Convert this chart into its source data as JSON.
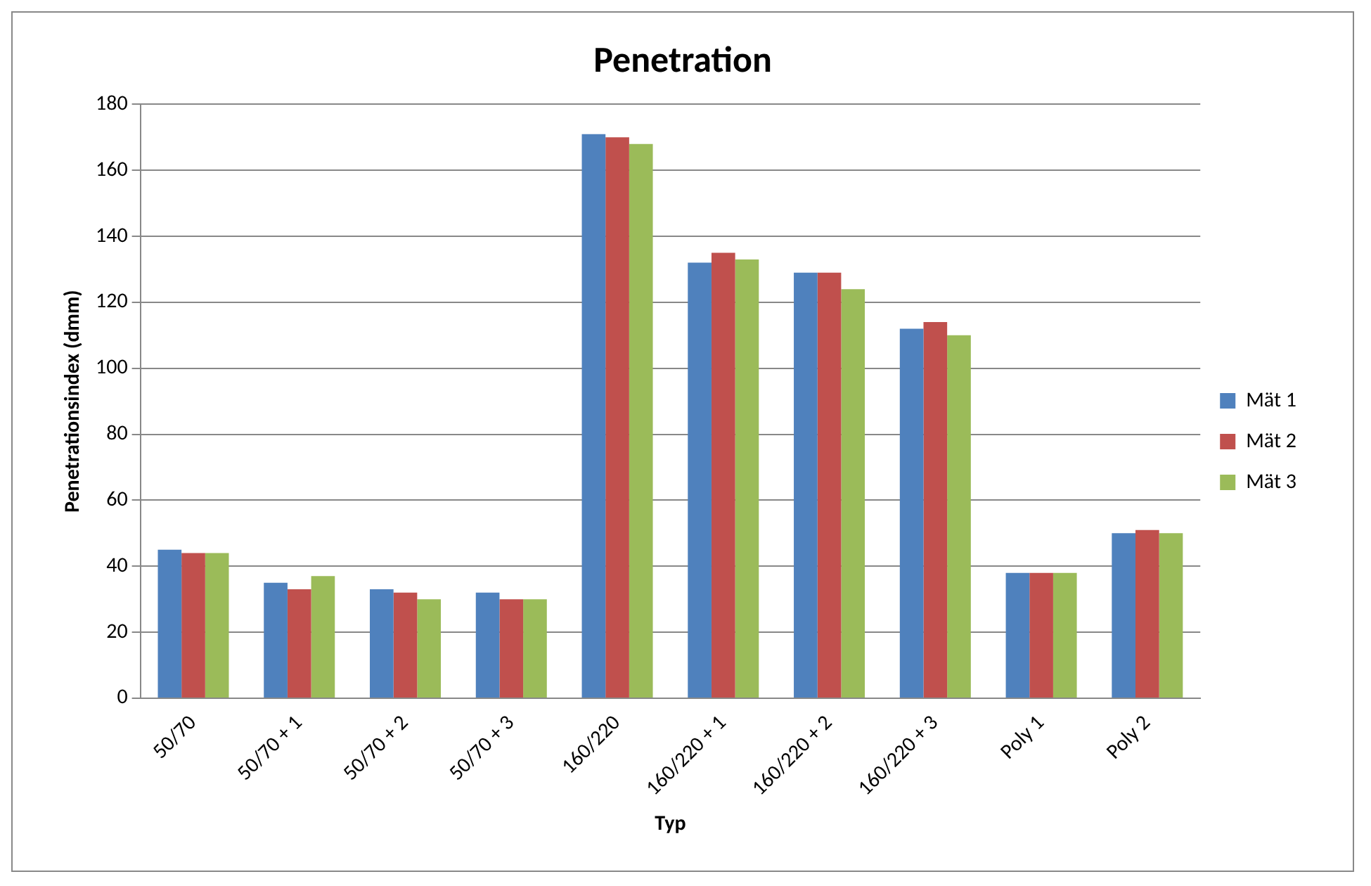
{
  "chart_data": {
    "type": "bar",
    "title": "Penetration",
    "xlabel": "Typ",
    "ylabel": "Penetrationsindex (dmm)",
    "categories": [
      "50/70",
      "50/70 + 1",
      "50/70 + 2",
      "50/70 + 3",
      "160/220",
      "160/220 + 1",
      "160/220 + 2",
      "160/220 + 3",
      "Poly 1",
      "Poly 2"
    ],
    "series": [
      {
        "name": "Mät 1",
        "color": "#4f81bd",
        "values": [
          45,
          35,
          33,
          32,
          171,
          132,
          129,
          112,
          38,
          50
        ]
      },
      {
        "name": "Mät 2",
        "color": "#c0504d",
        "values": [
          44,
          33,
          32,
          30,
          170,
          135,
          129,
          114,
          38,
          51
        ]
      },
      {
        "name": "Mät 3",
        "color": "#9bbb59",
        "values": [
          44,
          37,
          30,
          30,
          168,
          133,
          124,
          110,
          38,
          50
        ]
      }
    ],
    "ylim": [
      0,
      180
    ],
    "yticks": [
      0,
      20,
      40,
      60,
      80,
      100,
      120,
      140,
      160,
      180
    ],
    "grid": "y",
    "legend": "right"
  }
}
